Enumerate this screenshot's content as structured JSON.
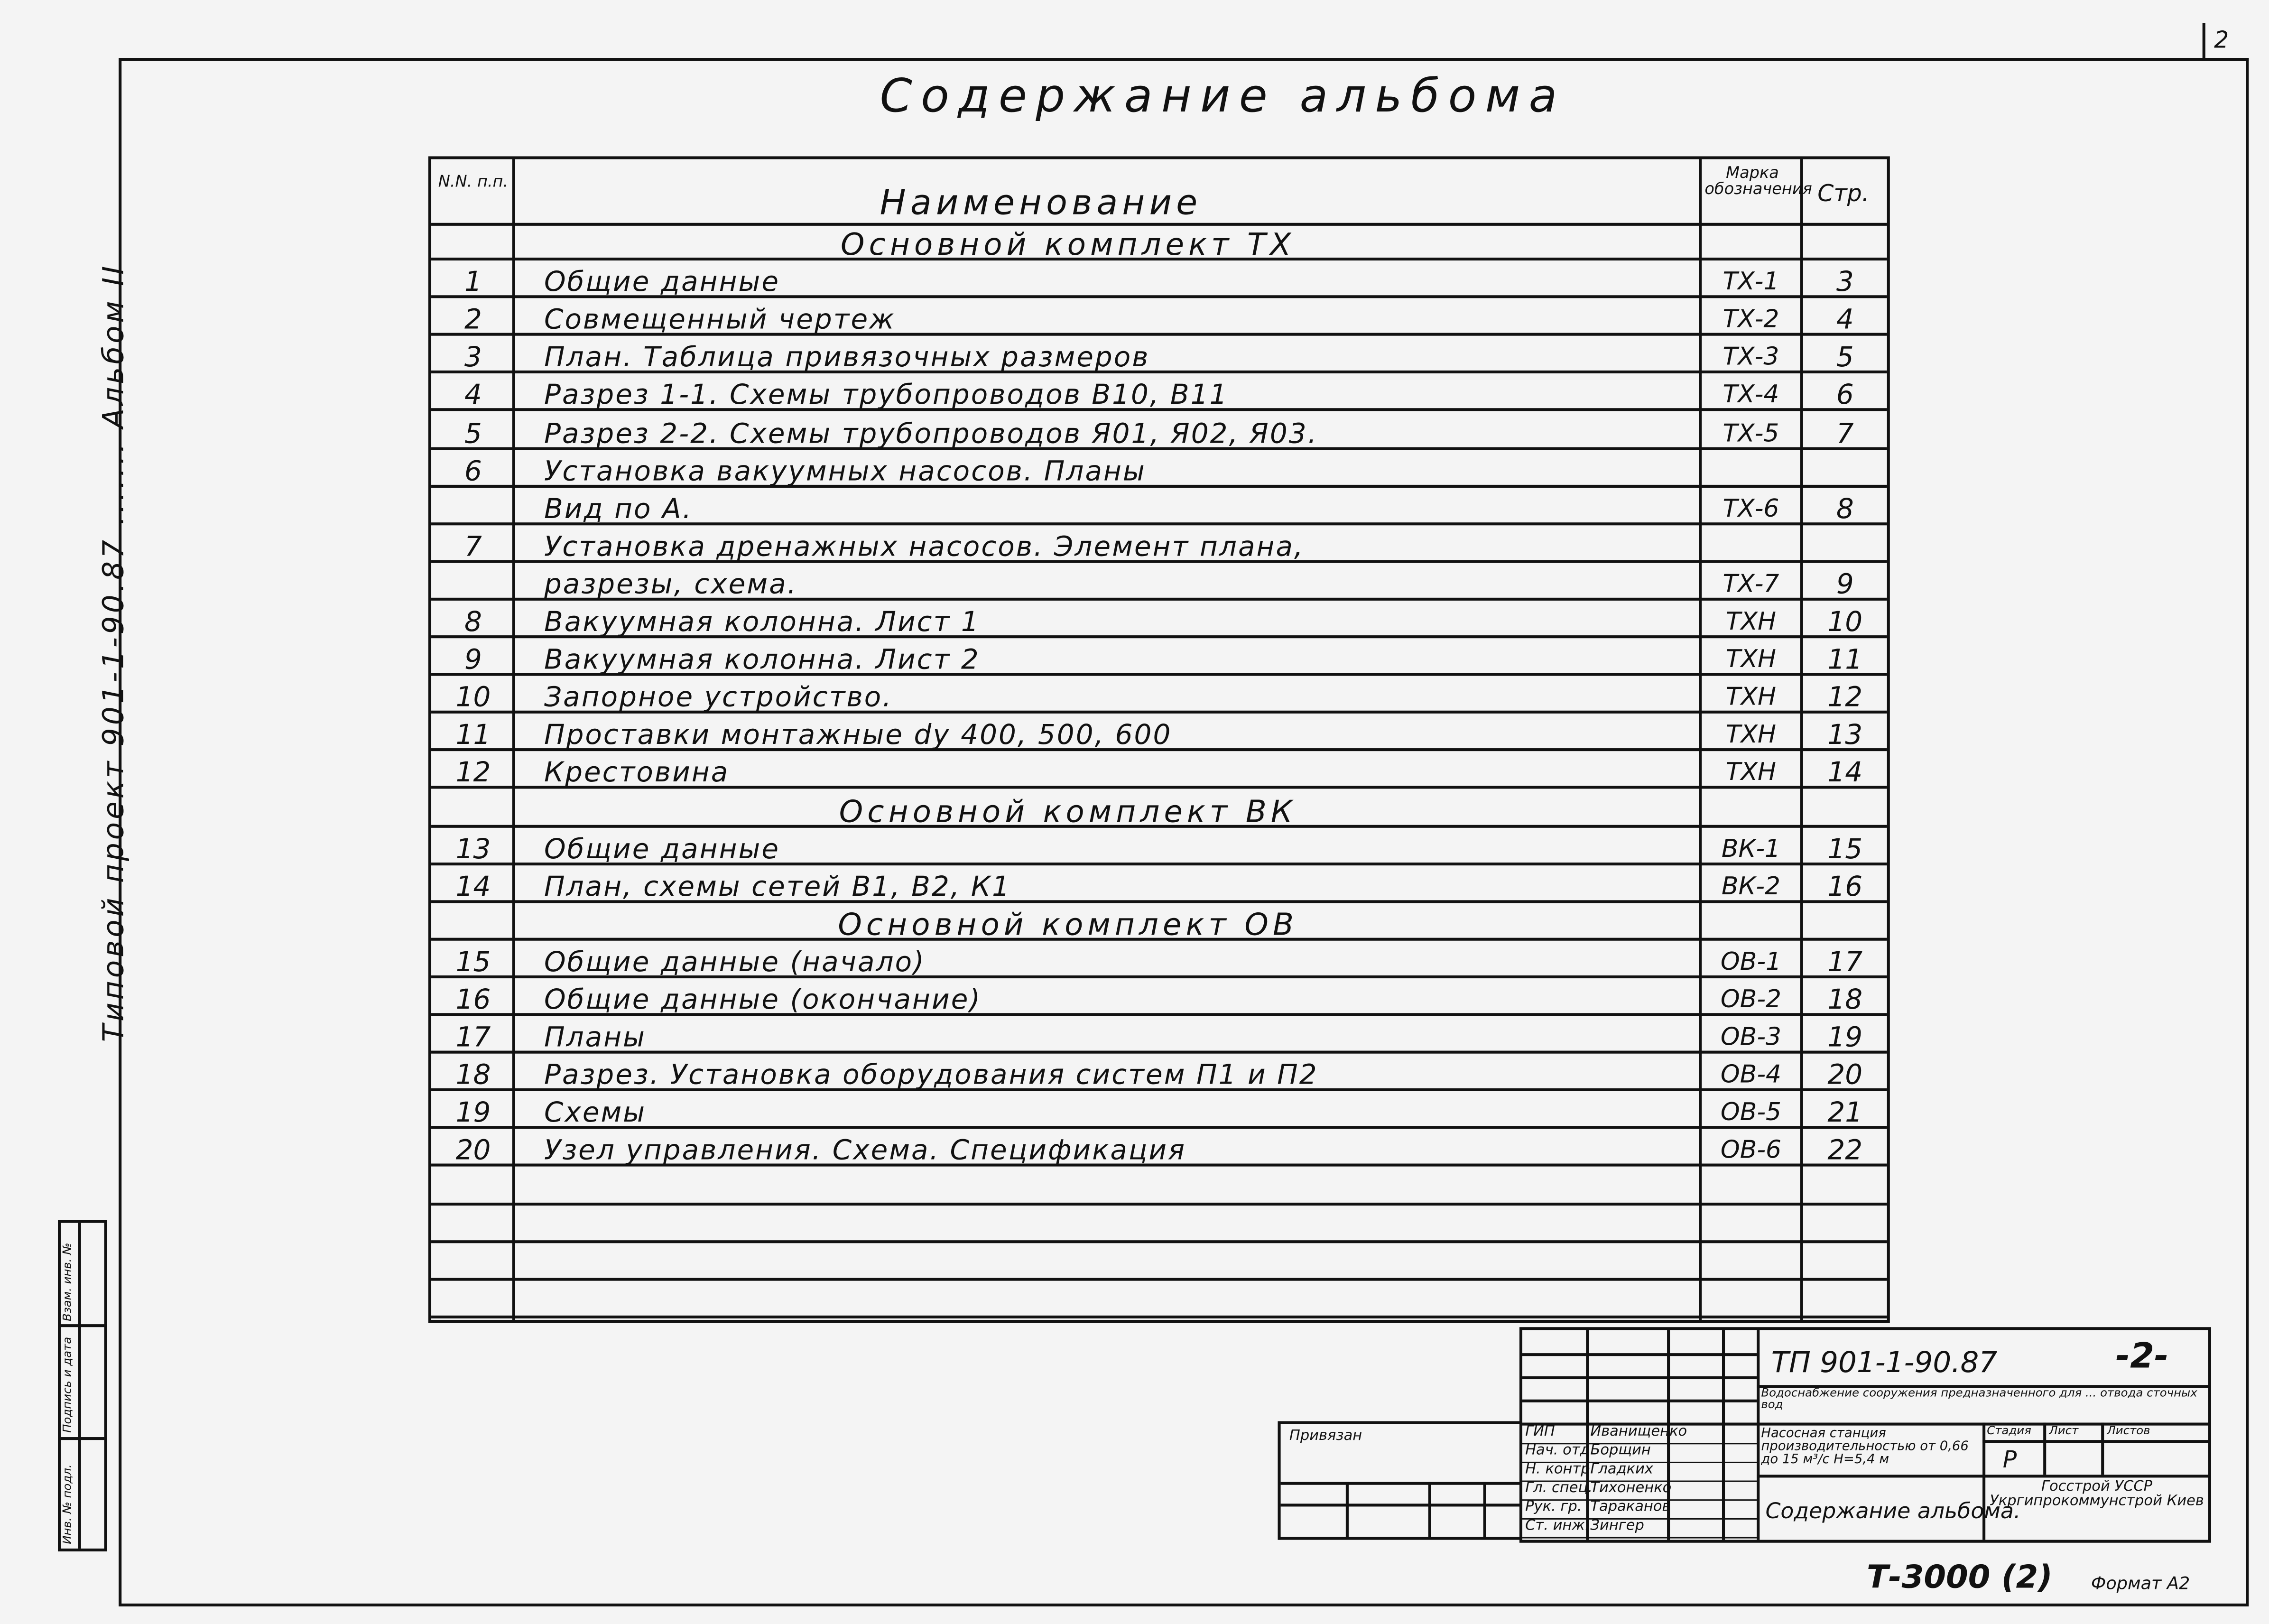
{
  "corner_number": "2",
  "title": "Содержание альбома",
  "side_label": "Типовой проект 901-1-90.87 ....... Альбом II",
  "side_stamp": [
    "Инв. № подл.",
    "Подпись и дата",
    "Взам. инв. №"
  ],
  "toc": {
    "headers": {
      "num": "N.N. п.п.",
      "name": "Наименование",
      "mark": "Марка обозначения",
      "page": "Стр."
    },
    "rows": [
      {
        "type": "section",
        "name": "Основной комплект ТХ"
      },
      {
        "num": "1",
        "name": "Общие данные",
        "mark": "ТХ-1",
        "page": "3"
      },
      {
        "num": "2",
        "name": "Совмещенный чертеж",
        "mark": "ТХ-2",
        "page": "4"
      },
      {
        "num": "3",
        "name": "План. Таблица привязочных размеров",
        "mark": "ТХ-3",
        "page": "5"
      },
      {
        "num": "4",
        "name": "Разрез 1-1. Схемы трубопроводов В10, В11",
        "mark": "ТХ-4",
        "page": "6"
      },
      {
        "num": "5",
        "name": "Разрез 2-2. Схемы трубопроводов Я01, Я02, Я03.",
        "mark": "ТХ-5",
        "page": "7"
      },
      {
        "num": "6",
        "name": "Установка вакуумных насосов. Планы",
        "mark": "",
        "page": ""
      },
      {
        "num": "",
        "name": "Вид по А.",
        "mark": "ТХ-6",
        "page": "8"
      },
      {
        "num": "7",
        "name": "Установка дренажных насосов. Элемент плана,",
        "mark": "",
        "page": ""
      },
      {
        "num": "",
        "name": "разрезы, схема.",
        "mark": "ТХ-7",
        "page": "9"
      },
      {
        "num": "8",
        "name": "Вакуумная колонна. Лист 1",
        "mark": "ТХН",
        "page": "10"
      },
      {
        "num": "9",
        "name": "Вакуумная колонна. Лист 2",
        "mark": "ТХН",
        "page": "11"
      },
      {
        "num": "10",
        "name": "Запорное устройство.",
        "mark": "ТХН",
        "page": "12"
      },
      {
        "num": "11",
        "name": "Проставки монтажные dу 400, 500, 600",
        "mark": "ТХН",
        "page": "13"
      },
      {
        "num": "12",
        "name": "Крестовина",
        "mark": "ТХН",
        "page": "14"
      },
      {
        "type": "section",
        "name": "Основной комплект ВК"
      },
      {
        "num": "13",
        "name": "Общие данные",
        "mark": "ВК-1",
        "page": "15"
      },
      {
        "num": "14",
        "name": "План, схемы сетей В1, В2, К1",
        "mark": "ВК-2",
        "page": "16"
      },
      {
        "type": "section",
        "name": "Основной комплект ОВ"
      },
      {
        "num": "15",
        "name": "Общие данные (начало)",
        "mark": "ОВ-1",
        "page": "17"
      },
      {
        "num": "16",
        "name": "Общие данные (окончание)",
        "mark": "ОВ-2",
        "page": "18"
      },
      {
        "num": "17",
        "name": "Планы",
        "mark": "ОВ-3",
        "page": "19"
      },
      {
        "num": "18",
        "name": "Разрез. Установка оборудования систем П1 и П2",
        "mark": "ОВ-4",
        "page": "20"
      },
      {
        "num": "19",
        "name": "Схемы",
        "mark": "ОВ-5",
        "page": "21"
      },
      {
        "num": "20",
        "name": "Узел управления. Схема. Спецификация",
        "mark": "ОВ-6",
        "page": "22"
      },
      {
        "num": "",
        "name": "",
        "mark": "",
        "page": ""
      },
      {
        "num": "",
        "name": "",
        "mark": "",
        "page": ""
      },
      {
        "num": "",
        "name": "",
        "mark": "",
        "page": ""
      },
      {
        "num": "",
        "name": "",
        "mark": "",
        "page": ""
      }
    ]
  },
  "title_block": {
    "code": "ТП 901-1-90.87",
    "sheet_mark": "-2-",
    "project_desc": "Водоснабжение сооружения предназначенного для ... отвода сточных вод",
    "object": "Насосная станция производительностью от 0,66 до 15 м³/с H=5,4 м",
    "stage_label": "Стадия",
    "sheet_label": "Лист",
    "sheets_label": "Листов",
    "stage": "Р",
    "sheet_title": "Содержание альбома.",
    "org": "Госстрой УССР Укргипрокоммунстрой Киев",
    "bound_label": "Привязан",
    "roles": [
      "ГИП",
      "Нач. отд.",
      "Н. контр.",
      "Гл. спец.",
      "Рук. гр.",
      "Ст. инж."
    ],
    "names": [
      "Иванищенко",
      "Борщин",
      "Гладких",
      "Тихоненко",
      "Тараканов",
      "Зингер"
    ]
  },
  "inventory_stamp": "Т-3000 (2)",
  "format": "Формат А2"
}
